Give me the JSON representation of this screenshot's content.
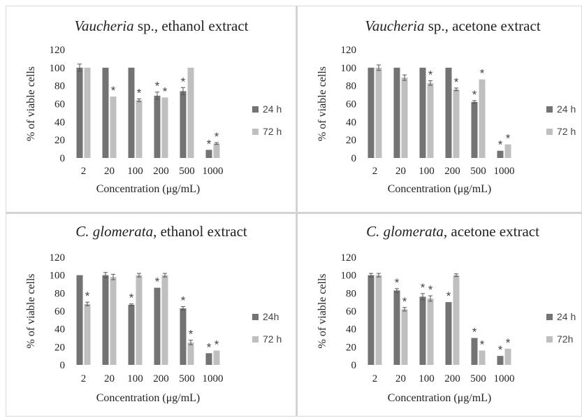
{
  "colors": {
    "h24": "#737373",
    "h72": "#bfbfbf",
    "error_bar": "#555555",
    "panel_border": "#d9d9d9"
  },
  "chart_data": [
    {
      "type": "bar",
      "title_italic": "Vaucheria",
      "title_rest": " sp., ethanol extract",
      "xlabel": "Concentration (μg/mL)",
      "ylabel": "% of viable cells",
      "categories": [
        "2",
        "20",
        "100",
        "200",
        "500",
        "1000"
      ],
      "yticks": [
        "0",
        "20",
        "40",
        "60",
        "80",
        "100",
        "120"
      ],
      "ylim": [
        0,
        120
      ],
      "legend_position": "right",
      "series": [
        {
          "name": "24 h",
          "values": [
            100,
            100,
            100,
            69,
            74,
            9
          ],
          "errors": [
            4,
            0,
            0,
            4,
            4,
            0
          ],
          "significant": [
            false,
            false,
            false,
            true,
            true,
            true
          ]
        },
        {
          "name": "72 h",
          "values": [
            100,
            68,
            64,
            67,
            100,
            16
          ],
          "errors": [
            0,
            0,
            1.5,
            0,
            0,
            1
          ],
          "significant": [
            false,
            true,
            true,
            true,
            false,
            true
          ]
        }
      ],
      "significance_marker": "*"
    },
    {
      "type": "bar",
      "title_italic": "Vaucheria",
      "title_rest": " sp., acetone extract",
      "xlabel": "Concentration (μg/mL)",
      "ylabel": "% of viable cells",
      "categories": [
        "2",
        "20",
        "100",
        "200",
        "500",
        "1000"
      ],
      "yticks": [
        "0",
        "20",
        "40",
        "60",
        "80",
        "100",
        "120"
      ],
      "ylim": [
        0,
        120
      ],
      "legend_position": "right",
      "series": [
        {
          "name": "24 h",
          "values": [
            100,
            100,
            100,
            100,
            62,
            8
          ],
          "errors": [
            0,
            0,
            0,
            0,
            1.5,
            0
          ],
          "significant": [
            false,
            false,
            false,
            false,
            true,
            true
          ]
        },
        {
          "name": "72 h",
          "values": [
            100,
            89,
            83,
            76,
            87,
            15
          ],
          "errors": [
            3,
            3,
            2.5,
            1.5,
            0,
            0
          ],
          "significant": [
            false,
            false,
            true,
            true,
            true,
            true
          ]
        }
      ],
      "significance_marker": "*"
    },
    {
      "type": "bar",
      "title_italic": "C. glomerata",
      "title_rest": ", ethanol extract",
      "xlabel": "Concentration (μg/mL)",
      "ylabel": "% of viable cells",
      "categories": [
        "2",
        "20",
        "100",
        "200",
        "500",
        "1000"
      ],
      "yticks": [
        "0",
        "20",
        "40",
        "60",
        "80",
        "100",
        "120"
      ],
      "ylim": [
        0,
        120
      ],
      "legend_position": "right",
      "series": [
        {
          "name": "24h",
          "values": [
            100,
            100,
            67,
            86,
            63,
            13
          ],
          "errors": [
            0,
            3,
            1,
            0,
            2,
            0
          ],
          "significant": [
            false,
            false,
            true,
            true,
            true,
            true
          ]
        },
        {
          "name": "72 h",
          "values": [
            68,
            98,
            100,
            100,
            25,
            16
          ],
          "errors": [
            2,
            3,
            2,
            2,
            2.5,
            0
          ],
          "significant": [
            true,
            false,
            false,
            false,
            true,
            true
          ]
        }
      ],
      "significance_marker": "*"
    },
    {
      "type": "bar",
      "title_italic": "C. glomerata",
      "title_rest": ", acetone extract",
      "xlabel": "Concentration (μg/mL)",
      "ylabel": "% of viable cells",
      "categories": [
        "2",
        "20",
        "100",
        "200",
        "500",
        "1000"
      ],
      "yticks": [
        "0",
        "20",
        "40",
        "60",
        "80",
        "100",
        "120"
      ],
      "ylim": [
        0,
        120
      ],
      "legend_position": "right",
      "series": [
        {
          "name": "24 h",
          "values": [
            100,
            83,
            76,
            70,
            30,
            10
          ],
          "errors": [
            2,
            2,
            3.5,
            0,
            0,
            0
          ],
          "significant": [
            false,
            true,
            true,
            true,
            true,
            true
          ]
        },
        {
          "name": "72h",
          "values": [
            100,
            62,
            74,
            100,
            16,
            18
          ],
          "errors": [
            2,
            2,
            3,
            1.5,
            0,
            0
          ],
          "significant": [
            false,
            true,
            true,
            false,
            true,
            true
          ]
        }
      ],
      "significance_marker": "*"
    }
  ]
}
